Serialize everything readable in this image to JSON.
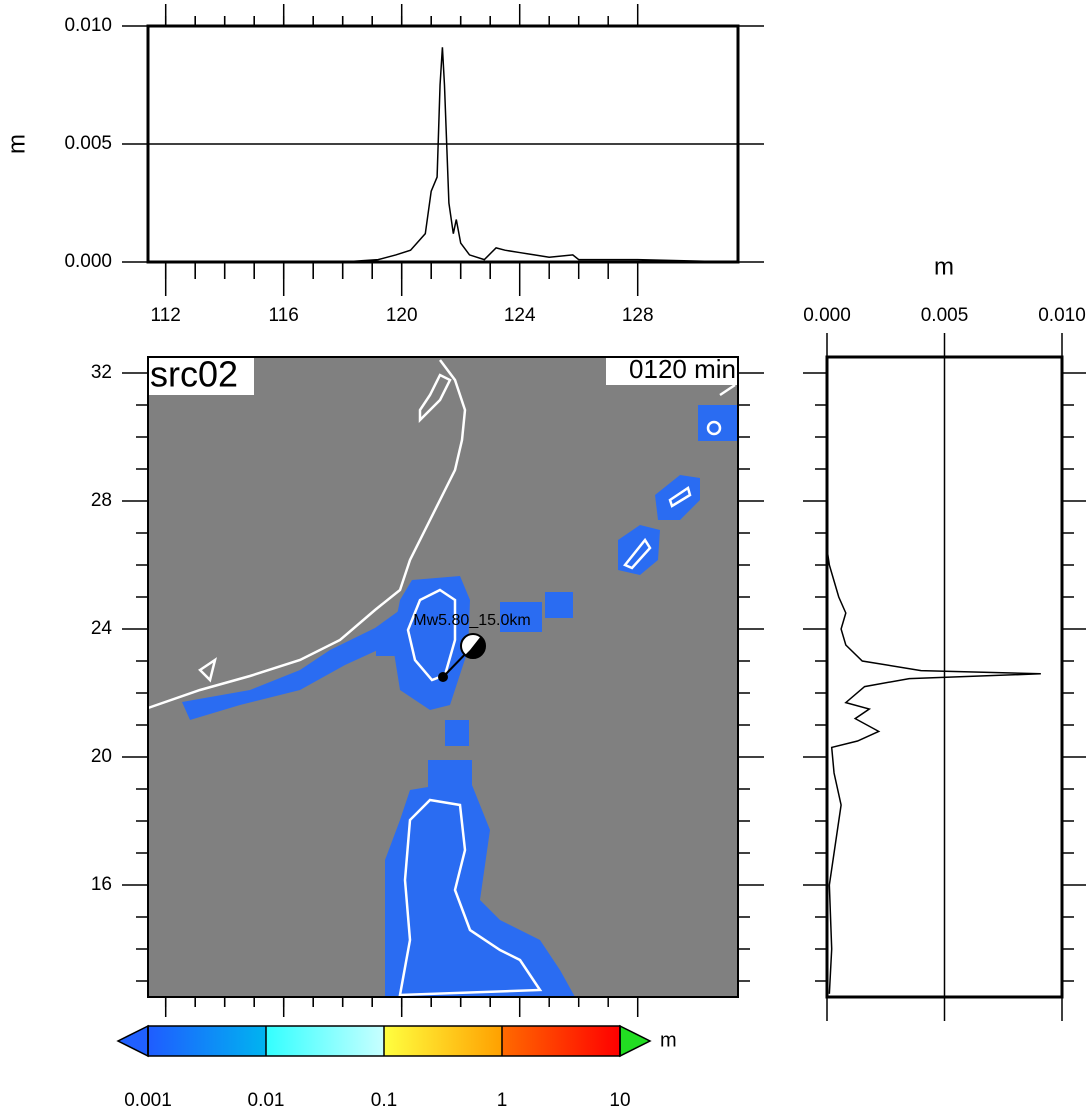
{
  "map": {
    "label": "src02",
    "time": "0120 min",
    "event": "Mw5.80_15.0km",
    "xlim": [
      111.4,
      131.4
    ],
    "xticks": [
      112,
      116,
      120,
      124,
      128
    ],
    "ylim": [
      12.5,
      32.5
    ],
    "yticks": [
      16,
      20,
      24,
      28,
      32
    ],
    "background": "#808080"
  },
  "top_profile": {
    "type": "line",
    "ylabel": "m",
    "color": "#000000",
    "ylim": [
      0,
      0.01
    ],
    "yticks": [
      {
        "value": 0,
        "label": "0.000"
      },
      {
        "value": 0.005,
        "label": "0.005"
      },
      {
        "value": 0.01,
        "label": "0.010"
      }
    ],
    "grid_values": [
      0.005
    ],
    "x": [
      118,
      119.2,
      119.8,
      120.3,
      120.8,
      121.0,
      121.2,
      121.3,
      121.38,
      121.45,
      121.6,
      121.75,
      121.85,
      122.0,
      122.3,
      122.8,
      123.2,
      123.5,
      124,
      124.5,
      125,
      125.8,
      126,
      127,
      128,
      131.3
    ],
    "values": [
      0,
      0.0001,
      0.0003,
      0.0005,
      0.0012,
      0.003,
      0.0036,
      0.0075,
      0.0091,
      0.0075,
      0.0025,
      0.0012,
      0.0018,
      0.0008,
      0.0003,
      0.0001,
      0.0006,
      0.0005,
      0.0004,
      0.0003,
      0.0002,
      0.0003,
      0.0001,
      0.0001,
      0.0001,
      0
    ]
  },
  "right_profile": {
    "type": "line",
    "xlabel": "m",
    "color": "#000000",
    "xlim": [
      0,
      0.01
    ],
    "xticks": [
      {
        "value": 0,
        "label": "0.000"
      },
      {
        "value": 0.005,
        "label": "0.005"
      },
      {
        "value": 0.01,
        "label": "0.010"
      }
    ],
    "grid_values": [
      0.005
    ],
    "y": [
      12.6,
      14,
      16,
      17,
      18.5,
      19.5,
      20.3,
      20.5,
      20.8,
      21.2,
      21.5,
      21.7,
      22.2,
      22.45,
      22.6,
      22.7,
      23,
      23.5,
      24,
      24.5,
      25,
      25.5,
      26,
      26.5,
      32.5
    ],
    "values": [
      0.0001,
      0.0002,
      0.0001,
      0.0003,
      0.0006,
      0.0003,
      0.0002,
      0.0013,
      0.0022,
      0.0012,
      0.0018,
      0.0008,
      0.0016,
      0.0035,
      0.0091,
      0.004,
      0.0015,
      0.0008,
      0.0006,
      0.0008,
      0.0005,
      0.0003,
      0.0001,
      0,
      0
    ]
  },
  "colorbar": {
    "log": true,
    "unit": "m",
    "xlim": [
      0.001,
      10
    ],
    "ticks": [
      {
        "value": 0.001,
        "label": "0.001"
      },
      {
        "value": 0.01,
        "label": "0.01"
      },
      {
        "value": 0.1,
        "label": "0.1"
      },
      1,
      10
    ],
    "colors": [
      [
        "#1f5cff",
        "#00b4f0"
      ],
      [
        "#33ffff",
        "#c8ffff"
      ],
      [
        "#ffff40",
        "#ffa000"
      ],
      [
        "#ff6a00",
        "#ff0000"
      ]
    ],
    "under_color": "#2060ff",
    "over_color": "#22dd22"
  }
}
